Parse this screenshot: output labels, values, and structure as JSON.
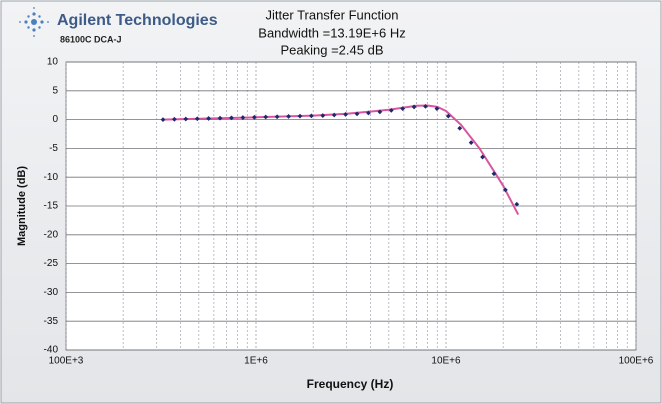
{
  "header": {
    "brand": "Agilent Technologies",
    "model": "86100C DCA-J"
  },
  "chart_data": {
    "type": "scatter",
    "title": "Jitter Transfer Function",
    "subtitle": [
      "Bandwidth =13.19E+6 Hz",
      "Peaking =2.45 dB"
    ],
    "x_label": "Frequency (Hz)",
    "y_label": "Magnitude (dB)",
    "xscale": "log",
    "xlim": [
      100000,
      100000000
    ],
    "xticks": [
      {
        "value": 100000,
        "label": "100E+3"
      },
      {
        "value": 1000000,
        "label": "1E+6"
      },
      {
        "value": 10000000,
        "label": "10E+6"
      },
      {
        "value": 100000000,
        "label": "100E+6"
      }
    ],
    "xminorticks": [
      200000,
      300000,
      400000,
      500000,
      600000,
      700000,
      800000,
      900000,
      2000000,
      3000000,
      4000000,
      5000000,
      6000000,
      7000000,
      8000000,
      9000000,
      20000000,
      30000000,
      40000000,
      50000000,
      60000000,
      70000000,
      80000000,
      90000000
    ],
    "ylim": [
      -40,
      10
    ],
    "yticks": [
      -40,
      -35,
      -30,
      -25,
      -20,
      -15,
      -10,
      -5,
      0,
      5,
      10
    ],
    "grid": true,
    "series": [
      {
        "type": "line",
        "color": "#d9559f",
        "x": [
          320000,
          1000000,
          2000000,
          3000000,
          5000000,
          7000000,
          8000000,
          9000000,
          10000000,
          12000000,
          15000000,
          20000000,
          24000000
        ],
        "values": [
          0,
          0.4,
          0.7,
          1.0,
          1.7,
          2.4,
          2.45,
          2.2,
          1.5,
          -0.9,
          -5,
          -11.5,
          -16.5
        ]
      },
      {
        "type": "scatter",
        "color": "#1f2a6e",
        "x": [
          324000,
          372000,
          427000,
          491000,
          563000,
          647000,
          743000,
          853000,
          980000,
          1125000,
          1292000,
          1484000,
          1704000,
          1956000,
          2247000,
          2580000,
          2962000,
          3402000,
          3906000,
          4486000,
          5151000,
          5915000,
          6793000,
          7800000,
          8957000,
          10286000,
          11811000,
          13563000,
          15575000,
          17885000,
          20538000,
          23584000
        ],
        "values": [
          0,
          0.05,
          0.1,
          0.15,
          0.2,
          0.25,
          0.3,
          0.35,
          0.4,
          0.45,
          0.5,
          0.55,
          0.6,
          0.65,
          0.7,
          0.8,
          0.9,
          1.0,
          1.15,
          1.35,
          1.6,
          1.9,
          2.2,
          2.3,
          1.9,
          0.6,
          -1.5,
          -4.0,
          -6.5,
          -9.4,
          -12.2,
          -14.7
        ]
      }
    ]
  }
}
